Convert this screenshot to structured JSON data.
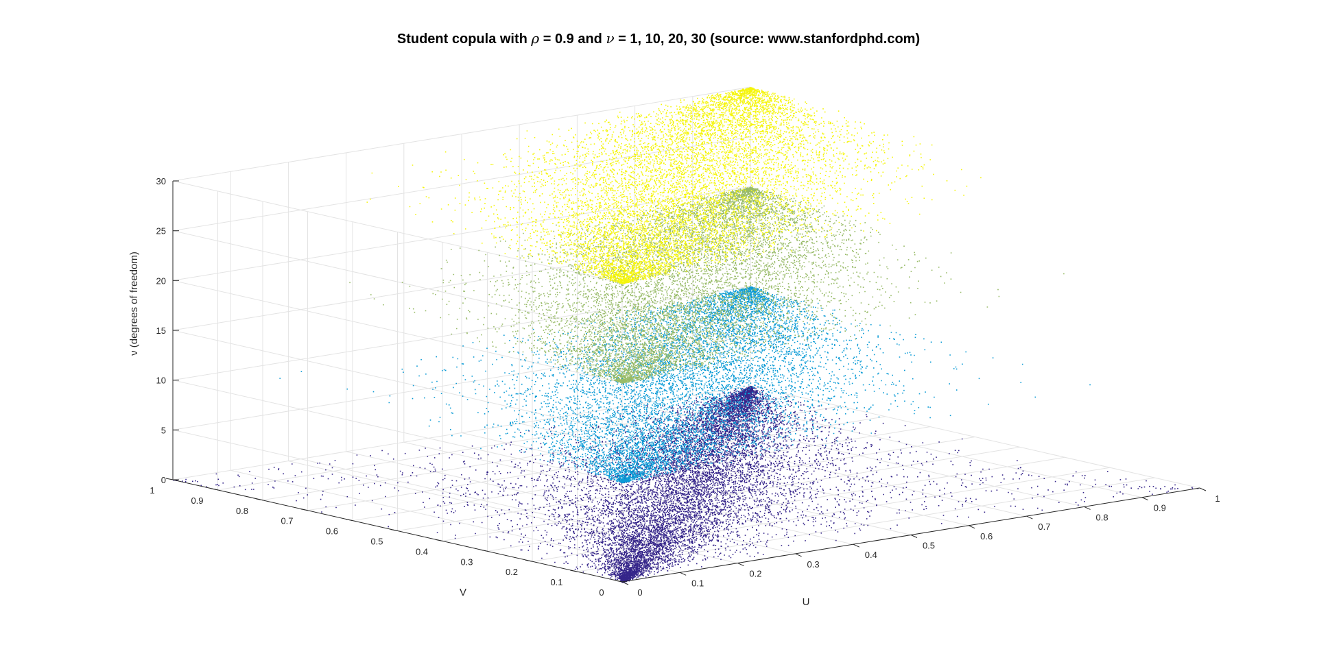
{
  "chart_data": {
    "type": "scatter",
    "title_parts": {
      "prefix": "Student copula with ",
      "rho_symbol": "ρ",
      "middle": " = 0.9 and ",
      "nu_symbol": "ν",
      "suffix": " = 1, 10, 20, 30 (source: www.stanfordphd.com)"
    },
    "xlabel": "U",
    "ylabel": "V",
    "zlabel": "ν (degrees of freedom)",
    "xlim": [
      0,
      1
    ],
    "ylim": [
      0,
      1
    ],
    "zlim": [
      0,
      30
    ],
    "x_ticks": [
      "0",
      "0.1",
      "0.2",
      "0.3",
      "0.4",
      "0.5",
      "0.6",
      "0.7",
      "0.8",
      "0.9",
      "1"
    ],
    "y_ticks": [
      "0",
      "0.1",
      "0.2",
      "0.3",
      "0.4",
      "0.5",
      "0.6",
      "0.7",
      "0.8",
      "0.9",
      "1"
    ],
    "z_ticks": [
      "0",
      "5",
      "10",
      "15",
      "20",
      "25",
      "30"
    ],
    "grid": true,
    "rho": 0.9,
    "series": [
      {
        "nu": 1,
        "z": 0,
        "color": "#35258a"
      },
      {
        "nu": 10,
        "z": 10,
        "color": "#0b9bd6"
      },
      {
        "nu": 20,
        "z": 20,
        "color": "#98bb68"
      },
      {
        "nu": 30,
        "z": 30,
        "color": "#f5f50a"
      }
    ]
  }
}
